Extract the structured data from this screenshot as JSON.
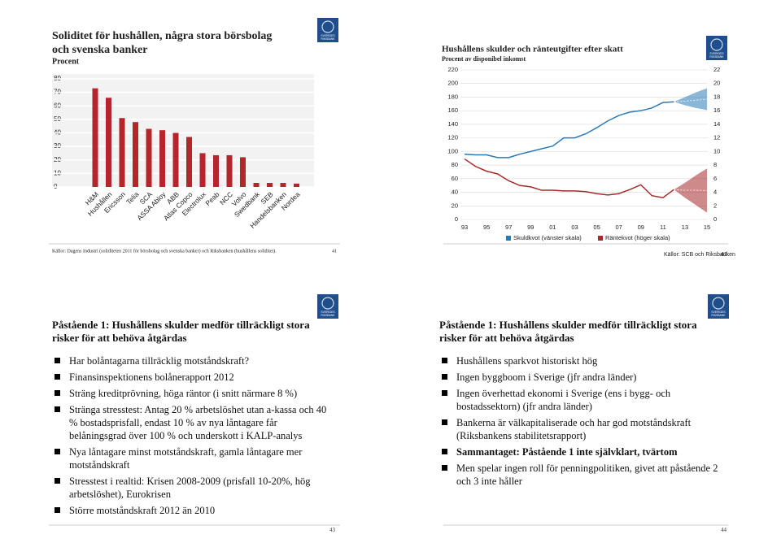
{
  "logo": {
    "line1": "SVERIGES",
    "line2": "RIKSBANK"
  },
  "slides": [
    {
      "page": "41",
      "source": "Källor: Dagens Industri (soliditeten 2011 för börsbolag och svenska banker) och Riksbanken (hushållens soliditet).",
      "chart_data": {
        "type": "bar",
        "title": "Soliditet för hushållen, några stora börsbolag och svenska banker",
        "subtitle": "Procent",
        "categories": [
          "H&M",
          "Hushållen",
          "Ericsson",
          "Telia",
          "SCA",
          "ASSA Abloy",
          "ABB",
          "Atlas Copco",
          "Electrolux",
          "Peab",
          "NCC",
          "Volvo",
          "Swedbank",
          "SEB",
          "Handelsbanken",
          "Nordea"
        ],
        "values": [
          73,
          66,
          51,
          48,
          43,
          42,
          40,
          37,
          25,
          23.5,
          23.5,
          22,
          3,
          3,
          3,
          2.5
        ],
        "color": "#b5262c",
        "ylim": [
          0,
          80
        ],
        "yticks": [
          0,
          10,
          20,
          30,
          40,
          50,
          60,
          70,
          80
        ],
        "grid": true
      }
    },
    {
      "page": "42",
      "source": "Källor: SCB och Riksbanken",
      "chart_data": {
        "type": "line",
        "title": "Hushållens skulder och ränteutgifter efter skatt",
        "subtitle": "Procent av disponibel inkomst",
        "x": [
          1993,
          1994,
          1995,
          1996,
          1997,
          1998,
          1999,
          2000,
          2001,
          2002,
          2003,
          2004,
          2005,
          2006,
          2007,
          2008,
          2009,
          2010,
          2011,
          2012
        ],
        "series": [
          {
            "name": "Skuldkvot (vänster skala)",
            "color": "#2a7ab8",
            "values": [
              96,
              95,
              95,
              91,
              91,
              96,
              100,
              104,
              108,
              120,
              120,
              126,
              135,
              145,
              153,
              158,
              160,
              164,
              172,
              173
            ],
            "band": {
              "x": [
                2012,
                2013,
                2014,
                2015
              ],
              "upper": [
                173,
                180,
                187,
                193
              ],
              "lower": [
                173,
                168,
                164,
                161
              ]
            }
          },
          {
            "name": "Räntekvot (höger skala)",
            "color": "#a52a2a",
            "axis": "y2",
            "values": [
              8.9,
              7.8,
              7.1,
              6.7,
              5.7,
              5.0,
              4.8,
              4.3,
              4.3,
              4.2,
              4.2,
              4.1,
              3.8,
              3.6,
              3.8,
              4.4,
              5.1,
              3.5,
              3.2,
              4.4
            ],
            "band": {
              "x": [
                2012,
                2013,
                2014,
                2015
              ],
              "upper": [
                4.4,
                5.4,
                6.5,
                7.5
              ],
              "lower": [
                4.4,
                3.2,
                2.1,
                1.0
              ]
            }
          }
        ],
        "xlim": [
          1992,
          2016
        ],
        "xticks": [
          {
            "value": 1993,
            "label": "93"
          },
          {
            "value": 1995,
            "label": "95"
          },
          {
            "value": 1997,
            "label": "97"
          },
          {
            "value": 1999,
            "label": "99"
          },
          {
            "value": 2001,
            "label": "01"
          },
          {
            "value": 2003,
            "label": "03"
          },
          {
            "value": 2005,
            "label": "05"
          },
          {
            "value": 2007,
            "label": "07"
          },
          {
            "value": 2009,
            "label": "09"
          },
          {
            "value": 2011,
            "label": "11"
          },
          {
            "value": 2013,
            "label": "13"
          },
          {
            "value": 2015,
            "label": "15"
          }
        ],
        "ylim": [
          0,
          220
        ],
        "yticks": [
          0,
          20,
          40,
          60,
          80,
          100,
          120,
          140,
          160,
          180,
          200,
          220
        ],
        "y2lim": [
          0,
          22
        ],
        "y2ticks": [
          0,
          2,
          4,
          6,
          8,
          10,
          12,
          14,
          16,
          18,
          20,
          22
        ],
        "grid": true,
        "legend": "bottom"
      }
    },
    {
      "page": "43",
      "title": "Påstående 1: Hushållens skulder medför tillräckligt stora risker för att behöva åtgärdas",
      "bullets": [
        "Har bolåntagarna tillräcklig motståndskraft?",
        "Finansinspektionens bolånerapport 2012",
        "Sträng kreditprövning, höga räntor (i snitt närmare 8 %)",
        "Stränga stresstest: Antag 20 % arbetslöshet utan a-kassa och 40 % bostadsprisfall, endast 10 % av nya låntagare får belåningsgrad över 100 % och underskott i KALP-analys",
        "Nya låntagare minst motståndskraft, gamla låntagare mer motståndskraft",
        "Stresstest i realtid: Krisen 2008-2009 (prisfall 10-20%, hög arbetslöshet), Eurokrisen",
        "Större motståndskraft 2012 än 2010"
      ],
      "emphasis": []
    },
    {
      "page": "44",
      "title": "Påstående 1: Hushållens skulder medför tillräckligt stora risker för att behöva åtgärdas",
      "bullets": [
        "Hushållens sparkvot historiskt hög",
        "Ingen byggboom i Sverige (jfr andra länder)",
        "Ingen överhettad ekonomi i Sverige (ens i bygg- och bostadssektorn) (jfr andra länder)",
        "Bankerna är välkapitaliserade och har god motståndskraft (Riksbankens stabilitetsrapport)",
        "Sammantaget: Påstående 1 inte självklart, tvärtom",
        "Men spelar ingen roll för penningpolitiken, givet att påstående 2 och 3 inte håller"
      ],
      "emphasis": [
        4
      ]
    }
  ]
}
